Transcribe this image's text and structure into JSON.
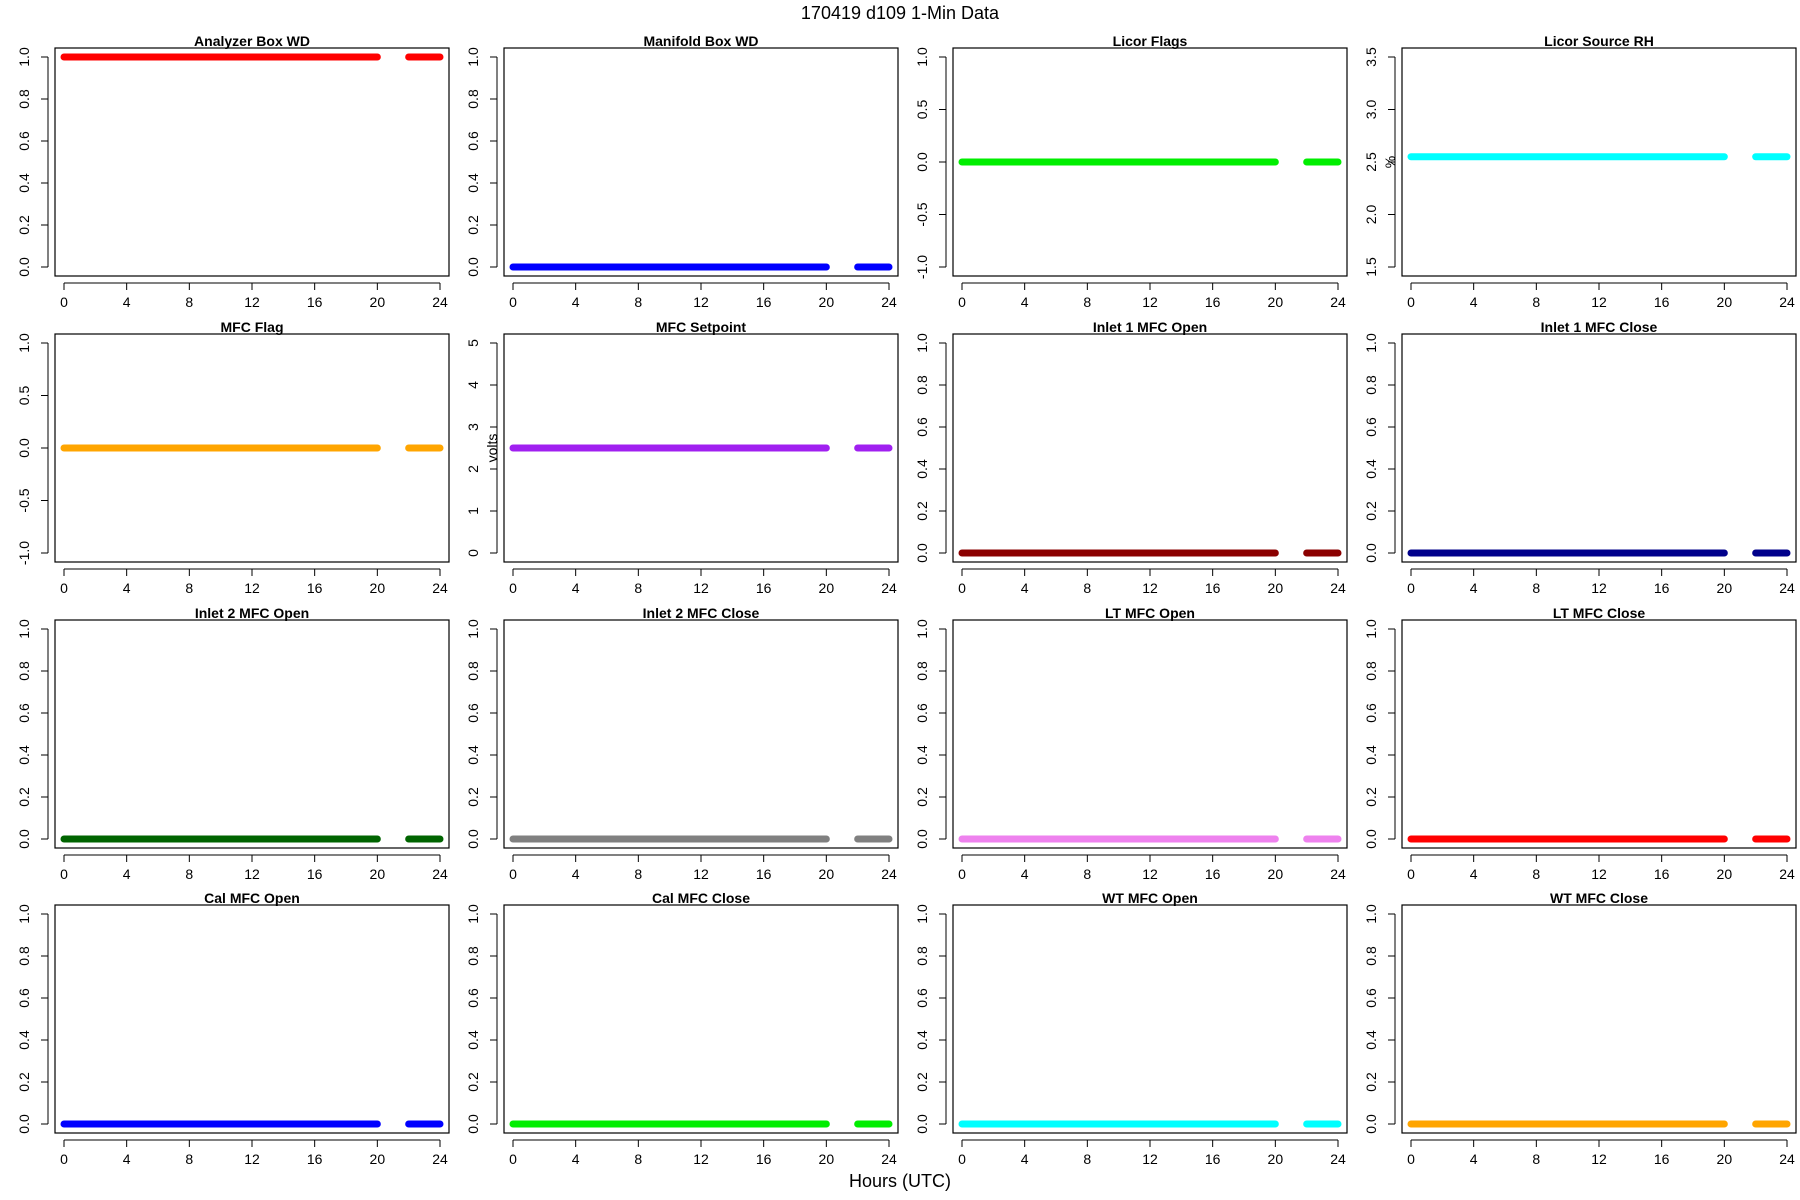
{
  "figure": {
    "title": "170419   d109   1-Min Data",
    "xlabel": "Hours (UTC)"
  },
  "chart_data": [
    {
      "type": "scatter",
      "title": "Analyzer Box WD",
      "ylabel": "",
      "color": "#ff0000",
      "xlim": [
        0,
        24
      ],
      "ylim": [
        0,
        1
      ],
      "xticks": [
        "0",
        "4",
        "8",
        "12",
        "16",
        "20",
        "24"
      ],
      "yticks": [
        "0.0",
        "0.2",
        "0.4",
        "0.6",
        "0.8",
        "1.0"
      ],
      "segments": [
        {
          "x": [
            0,
            20
          ],
          "y": 1
        },
        {
          "x": [
            22,
            24
          ],
          "y": 1
        }
      ]
    },
    {
      "type": "scatter",
      "title": "Manifold Box WD",
      "ylabel": "",
      "color": "#0000ff",
      "xlim": [
        0,
        24
      ],
      "ylim": [
        0,
        1
      ],
      "xticks": [
        "0",
        "4",
        "8",
        "12",
        "16",
        "20",
        "24"
      ],
      "yticks": [
        "0.0",
        "0.2",
        "0.4",
        "0.6",
        "0.8",
        "1.0"
      ],
      "segments": [
        {
          "x": [
            0,
            20
          ],
          "y": 0
        },
        {
          "x": [
            22,
            24
          ],
          "y": 0
        }
      ]
    },
    {
      "type": "scatter",
      "title": "Licor Flags",
      "ylabel": "",
      "color": "#00ee00",
      "xlim": [
        0,
        24
      ],
      "ylim": [
        -1,
        1
      ],
      "xticks": [
        "0",
        "4",
        "8",
        "12",
        "16",
        "20",
        "24"
      ],
      "yticks": [
        "-1.0",
        "-0.5",
        "0.0",
        "0.5",
        "1.0"
      ],
      "segments": [
        {
          "x": [
            0,
            20
          ],
          "y": 0
        },
        {
          "x": [
            22,
            24
          ],
          "y": 0
        }
      ]
    },
    {
      "type": "scatter",
      "title": "Licor Source RH",
      "ylabel": "%",
      "color": "#00ffff",
      "xlim": [
        0,
        24
      ],
      "ylim": [
        1.5,
        3.5
      ],
      "xticks": [
        "0",
        "4",
        "8",
        "12",
        "16",
        "20",
        "24"
      ],
      "yticks": [
        "1.5",
        "2.0",
        "2.5",
        "3.0",
        "3.5"
      ],
      "segments": [
        {
          "x": [
            0,
            20
          ],
          "y": 2.55
        },
        {
          "x": [
            22,
            24
          ],
          "y": 2.55
        }
      ]
    },
    {
      "type": "scatter",
      "title": "MFC Flag",
      "ylabel": "",
      "color": "#ffa500",
      "xlim": [
        0,
        24
      ],
      "ylim": [
        -1,
        1
      ],
      "xticks": [
        "0",
        "4",
        "8",
        "12",
        "16",
        "20",
        "24"
      ],
      "yticks": [
        "-1.0",
        "-0.5",
        "0.0",
        "0.5",
        "1.0"
      ],
      "segments": [
        {
          "x": [
            0,
            20
          ],
          "y": 0
        },
        {
          "x": [
            22,
            24
          ],
          "y": 0
        }
      ]
    },
    {
      "type": "scatter",
      "title": "MFC Setpoint",
      "ylabel": "volts",
      "color": "#a020f0",
      "xlim": [
        0,
        24
      ],
      "ylim": [
        0,
        5
      ],
      "xticks": [
        "0",
        "4",
        "8",
        "12",
        "16",
        "20",
        "24"
      ],
      "yticks": [
        "0",
        "1",
        "2",
        "3",
        "4",
        "5"
      ],
      "segments": [
        {
          "x": [
            0,
            20
          ],
          "y": 2.5
        },
        {
          "x": [
            22,
            24
          ],
          "y": 2.5
        }
      ]
    },
    {
      "type": "scatter",
      "title": "Inlet 1 MFC Open",
      "ylabel": "",
      "color": "#8b0000",
      "xlim": [
        0,
        24
      ],
      "ylim": [
        0,
        1
      ],
      "xticks": [
        "0",
        "4",
        "8",
        "12",
        "16",
        "20",
        "24"
      ],
      "yticks": [
        "0.0",
        "0.2",
        "0.4",
        "0.6",
        "0.8",
        "1.0"
      ],
      "segments": [
        {
          "x": [
            0,
            20
          ],
          "y": 0
        },
        {
          "x": [
            22,
            24
          ],
          "y": 0
        }
      ]
    },
    {
      "type": "scatter",
      "title": "Inlet 1 MFC Close",
      "ylabel": "",
      "color": "#00008b",
      "xlim": [
        0,
        24
      ],
      "ylim": [
        0,
        1
      ],
      "xticks": [
        "0",
        "4",
        "8",
        "12",
        "16",
        "20",
        "24"
      ],
      "yticks": [
        "0.0",
        "0.2",
        "0.4",
        "0.6",
        "0.8",
        "1.0"
      ],
      "segments": [
        {
          "x": [
            0,
            20
          ],
          "y": 0
        },
        {
          "x": [
            22,
            24
          ],
          "y": 0
        }
      ]
    },
    {
      "type": "scatter",
      "title": "Inlet 2 MFC Open",
      "ylabel": "",
      "color": "#006400",
      "xlim": [
        0,
        24
      ],
      "ylim": [
        0,
        1
      ],
      "xticks": [
        "0",
        "4",
        "8",
        "12",
        "16",
        "20",
        "24"
      ],
      "yticks": [
        "0.0",
        "0.2",
        "0.4",
        "0.6",
        "0.8",
        "1.0"
      ],
      "segments": [
        {
          "x": [
            0,
            20
          ],
          "y": 0
        },
        {
          "x": [
            22,
            24
          ],
          "y": 0
        }
      ]
    },
    {
      "type": "scatter",
      "title": "Inlet 2 MFC Close",
      "ylabel": "",
      "color": "#808080",
      "xlim": [
        0,
        24
      ],
      "ylim": [
        0,
        1
      ],
      "xticks": [
        "0",
        "4",
        "8",
        "12",
        "16",
        "20",
        "24"
      ],
      "yticks": [
        "0.0",
        "0.2",
        "0.4",
        "0.6",
        "0.8",
        "1.0"
      ],
      "segments": [
        {
          "x": [
            0,
            20
          ],
          "y": 0
        },
        {
          "x": [
            22,
            24
          ],
          "y": 0
        }
      ]
    },
    {
      "type": "scatter",
      "title": "LT MFC Open",
      "ylabel": "",
      "color": "#ee82ee",
      "xlim": [
        0,
        24
      ],
      "ylim": [
        0,
        1
      ],
      "xticks": [
        "0",
        "4",
        "8",
        "12",
        "16",
        "20",
        "24"
      ],
      "yticks": [
        "0.0",
        "0.2",
        "0.4",
        "0.6",
        "0.8",
        "1.0"
      ],
      "segments": [
        {
          "x": [
            0,
            20
          ],
          "y": 0
        },
        {
          "x": [
            22,
            24
          ],
          "y": 0
        }
      ]
    },
    {
      "type": "scatter",
      "title": "LT MFC Close",
      "ylabel": "",
      "color": "#ff0000",
      "xlim": [
        0,
        24
      ],
      "ylim": [
        0,
        1
      ],
      "xticks": [
        "0",
        "4",
        "8",
        "12",
        "16",
        "20",
        "24"
      ],
      "yticks": [
        "0.0",
        "0.2",
        "0.4",
        "0.6",
        "0.8",
        "1.0"
      ],
      "segments": [
        {
          "x": [
            0,
            20
          ],
          "y": 0
        },
        {
          "x": [
            22,
            24
          ],
          "y": 0
        }
      ]
    },
    {
      "type": "scatter",
      "title": "Cal MFC Open",
      "ylabel": "",
      "color": "#0000ff",
      "xlim": [
        0,
        24
      ],
      "ylim": [
        0,
        1
      ],
      "xticks": [
        "0",
        "4",
        "8",
        "12",
        "16",
        "20",
        "24"
      ],
      "yticks": [
        "0.0",
        "0.2",
        "0.4",
        "0.6",
        "0.8",
        "1.0"
      ],
      "segments": [
        {
          "x": [
            0,
            20
          ],
          "y": 0
        },
        {
          "x": [
            22,
            24
          ],
          "y": 0
        }
      ]
    },
    {
      "type": "scatter",
      "title": "Cal MFC Close",
      "ylabel": "",
      "color": "#00ee00",
      "xlim": [
        0,
        24
      ],
      "ylim": [
        0,
        1
      ],
      "xticks": [
        "0",
        "4",
        "8",
        "12",
        "16",
        "20",
        "24"
      ],
      "yticks": [
        "0.0",
        "0.2",
        "0.4",
        "0.6",
        "0.8",
        "1.0"
      ],
      "segments": [
        {
          "x": [
            0,
            20
          ],
          "y": 0
        },
        {
          "x": [
            22,
            24
          ],
          "y": 0
        }
      ]
    },
    {
      "type": "scatter",
      "title": "WT MFC Open",
      "ylabel": "",
      "color": "#00ffff",
      "xlim": [
        0,
        24
      ],
      "ylim": [
        0,
        1
      ],
      "xticks": [
        "0",
        "4",
        "8",
        "12",
        "16",
        "20",
        "24"
      ],
      "yticks": [
        "0.0",
        "0.2",
        "0.4",
        "0.6",
        "0.8",
        "1.0"
      ],
      "segments": [
        {
          "x": [
            0,
            20
          ],
          "y": 0
        },
        {
          "x": [
            22,
            24
          ],
          "y": 0
        }
      ]
    },
    {
      "type": "scatter",
      "title": "WT MFC Close",
      "ylabel": "",
      "color": "#ffa500",
      "xlim": [
        0,
        24
      ],
      "ylim": [
        0,
        1
      ],
      "xticks": [
        "0",
        "4",
        "8",
        "12",
        "16",
        "20",
        "24"
      ],
      "yticks": [
        "0.0",
        "0.2",
        "0.4",
        "0.6",
        "0.8",
        "1.0"
      ],
      "segments": [
        {
          "x": [
            0,
            20
          ],
          "y": 0
        },
        {
          "x": [
            22,
            24
          ],
          "y": 0
        }
      ]
    }
  ]
}
